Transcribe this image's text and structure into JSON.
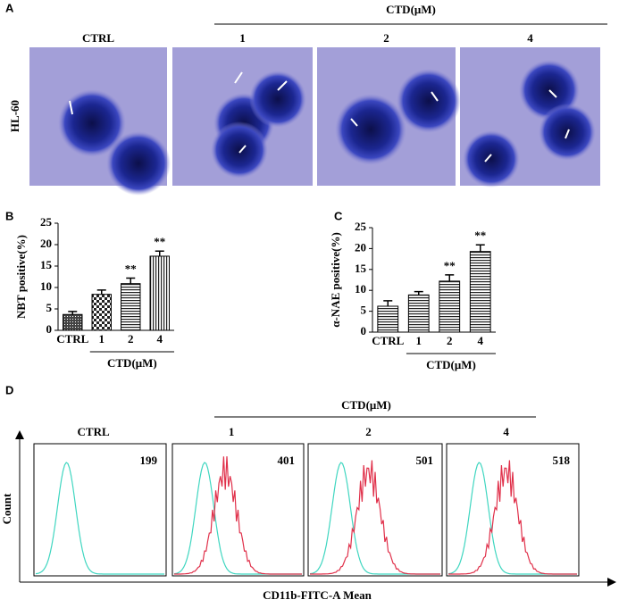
{
  "panel_a": {
    "label": "A",
    "header": "CTD(μM)",
    "columns": [
      "CTRL",
      "1",
      "2",
      "4"
    ],
    "row_label": "HL-60"
  },
  "chart_data": [
    {
      "type": "bar",
      "panel_label": "B",
      "y_label": "NBT positive(%)",
      "group_label": "CTD(μM)",
      "categories": [
        "CTRL",
        "1",
        "2",
        "4"
      ],
      "values": [
        3.7,
        8.4,
        10.9,
        17.3
      ],
      "errors": [
        0.7,
        1.0,
        1.3,
        1.2
      ],
      "annotations": [
        null,
        null,
        "**",
        "**"
      ],
      "patterns": [
        "dots",
        "checker",
        "hstripe",
        "vstripe"
      ],
      "ylim": [
        0,
        25
      ],
      "yticks": [
        0,
        5,
        10,
        15,
        20,
        25
      ]
    },
    {
      "type": "bar",
      "panel_label": "C",
      "y_label": "α-NAE positive(%)",
      "group_label": "CTD(μM)",
      "categories": [
        "CTRL",
        "1",
        "2",
        "4"
      ],
      "values": [
        6.2,
        8.9,
        12.2,
        19.3
      ],
      "errors": [
        1.3,
        0.8,
        1.5,
        1.6
      ],
      "annotations": [
        null,
        null,
        "**",
        "**"
      ],
      "patterns": [
        "hstripe",
        "hstripe",
        "hstripe",
        "hstripe"
      ],
      "ylim": [
        0,
        25
      ],
      "yticks": [
        0,
        5,
        10,
        15,
        20,
        25
      ]
    }
  ],
  "panel_d": {
    "label": "D",
    "header": "CTD(μM)",
    "columns": [
      "CTRL",
      "1",
      "2",
      "4"
    ],
    "means": [
      "199",
      "401",
      "501",
      "518"
    ],
    "y_label": "Count",
    "x_label": "CD11b-FITC-A Mean"
  }
}
